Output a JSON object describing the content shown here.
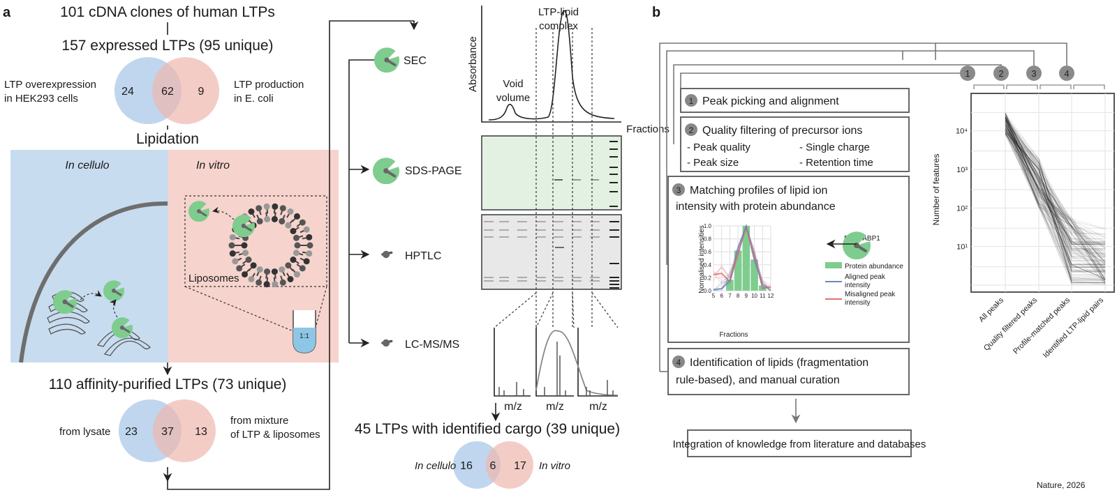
{
  "panel_a": {
    "label": "a",
    "step1": "101 cDNA clones of human LTPs",
    "step2": "157 expressed LTPs (95 unique)",
    "venn1": {
      "left_label_1": "LTP overexpression",
      "left_label_2": "in HEK293 cells",
      "right_label_1": "LTP production",
      "right_label_2": "in E. coli",
      "left": "24",
      "both": "62",
      "right": "9"
    },
    "lipidation": "Lipidation",
    "in_cellulo": "In cellulo",
    "in_vitro": "In vitro",
    "liposomes": "Liposomes",
    "tube_label": "1:1",
    "step3": "110 affinity-purified LTPs (73 unique)",
    "venn2": {
      "left_label": "from lysate",
      "right_label_1": "from  mixture",
      "right_label_2": "of LTP & liposomes",
      "left": "23",
      "both": "37",
      "right": "13"
    },
    "methods": [
      "SEC",
      "SDS-PAGE",
      "HPTLC",
      "LC-MS/MS"
    ],
    "chromatogram": {
      "ylabel": "Absorbance",
      "peak_label_1": "LTP-lipid",
      "peak_label_2": "complex",
      "void_1": "Void",
      "void_2": "volume",
      "xlabel": "Fractions"
    },
    "mz": [
      "m/z",
      "m/z",
      "m/z"
    ],
    "result": "45 LTPs with identified cargo (39 unique)",
    "venn3": {
      "left_label": "In cellulo",
      "right_label": "In vitro",
      "left": "16",
      "both": "6",
      "right": "17"
    }
  },
  "panel_b": {
    "label": "b",
    "steps": [
      {
        "num": "1",
        "title": "Peak picking and alignment"
      },
      {
        "num": "2",
        "title": "Quality filtering of precursor ions",
        "items": [
          "- Peak quality",
          "- Single charge",
          "- Peak size",
          "- Retention time"
        ]
      },
      {
        "num": "3",
        "title_1": "Matching profiles of lipid ion",
        "title_2": "intensity with protein abundance",
        "example": "E.g. FABP1"
      },
      {
        "num": "4",
        "title_1": "Identification of lipids (fragmentation",
        "title_2": "rule-based), and manual curation"
      }
    ],
    "final": "Integration of knowledge from literature and databases",
    "legend": {
      "protein": "Protein abundance",
      "aligned_1": "Aligned peak",
      "aligned_2": "intensity",
      "misaligned_1": "Misaligned peak",
      "misaligned_2": "intensity"
    }
  },
  "colors": {
    "green": "#7fcc8f",
    "blue_venn": "#a9c8e8",
    "red_venn": "#f0b6ae",
    "cellulo_bg": "#c8dcef",
    "vitro_bg": "#f6d3cd",
    "aligned": "#6f86b8",
    "misaligned": "#e07070"
  },
  "chart_data": [
    {
      "type": "bar",
      "title": "",
      "xlabel": "Fractions",
      "ylabel": "Normalised intensities",
      "x_ticks": [
        "5",
        "6",
        "7",
        "8",
        "9",
        "10",
        "11",
        "12"
      ],
      "y_ticks": [
        "0.0",
        "0.2",
        "0.4",
        "0.6",
        "0.8",
        "1.0"
      ],
      "ylim": [
        0,
        1
      ],
      "categories": [
        7,
        8,
        9,
        10,
        11
      ],
      "values": [
        0.17,
        0.62,
        1.0,
        0.48,
        0.08
      ],
      "series_name": "Protein abundance"
    },
    {
      "type": "line",
      "ylabel": "Number of features",
      "yscale": "log",
      "ylim": [
        1,
        50000
      ],
      "y_ticks": [
        "10⁴",
        "10³",
        "10²",
        "10¹"
      ],
      "categories": [
        "All peaks",
        "Quality filtered peaks",
        "Profile-matched peaks",
        "Identified LTP-lipid pairs"
      ],
      "step_markers": [
        "1",
        "2",
        "3",
        "4"
      ],
      "typical_range": [
        [
          8000,
          30000
        ],
        [
          100,
          2000
        ],
        [
          1,
          60
        ],
        [
          1,
          40
        ]
      ]
    }
  ],
  "footer": "Nature, 2026"
}
